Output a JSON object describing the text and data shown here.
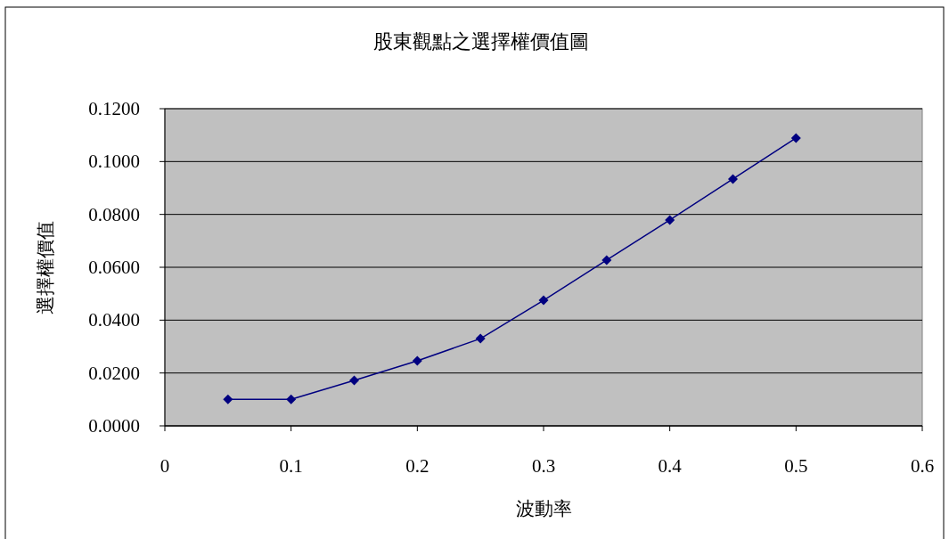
{
  "chart_data": {
    "type": "line",
    "title": "股東觀點之選擇權價值圖",
    "xlabel": "波動率",
    "ylabel": "選擇權價值",
    "x": [
      0.05,
      0.1,
      0.15,
      0.2,
      0.25,
      0.3,
      0.35,
      0.4,
      0.45,
      0.5
    ],
    "series": [
      {
        "color": "#000080",
        "values": [
          0.01,
          0.01,
          0.0172,
          0.0246,
          0.033,
          0.0475,
          0.0627,
          0.0779,
          0.0934,
          0.1089
        ]
      }
    ],
    "xlim": [
      0,
      0.6
    ],
    "xticks": [
      0,
      0.1,
      0.2,
      0.3,
      0.4,
      0.5,
      0.6
    ],
    "ylim": [
      0,
      0.12
    ],
    "yticks": [
      {
        "value": 0,
        "label": "0.0000"
      },
      {
        "value": 0.02,
        "label": "0.0200"
      },
      {
        "value": 0.04,
        "label": "0.0400"
      },
      {
        "value": 0.06,
        "label": "0.0600"
      },
      {
        "value": 0.08,
        "label": "0.0800"
      },
      {
        "value": 0.1,
        "label": "0.1000"
      },
      {
        "value": 0.12,
        "label": "0.1200"
      }
    ],
    "grid": "y",
    "marker": "diamond",
    "line_style": "solid"
  }
}
